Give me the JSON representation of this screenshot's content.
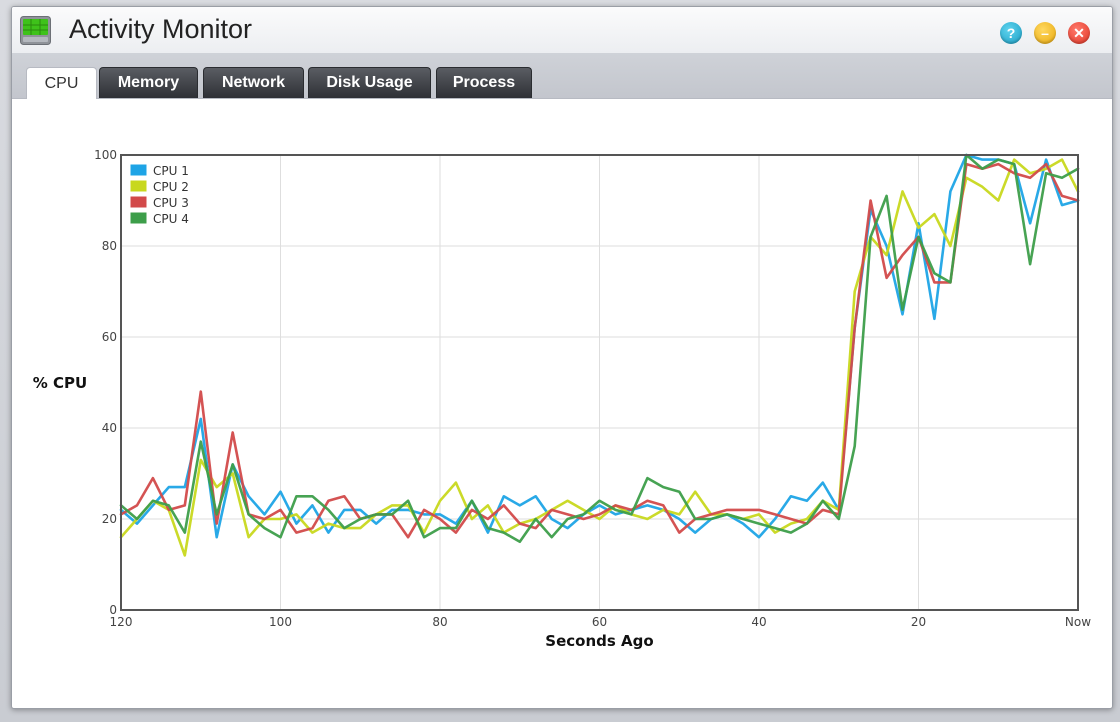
{
  "window": {
    "title": "Activity Monitor",
    "help_symbol": "?",
    "min_symbol": "–",
    "close_symbol": "✕"
  },
  "tabs": [
    {
      "label": "CPU",
      "active": true
    },
    {
      "label": "Memory",
      "active": false
    },
    {
      "label": "Network",
      "active": false
    },
    {
      "label": "Disk Usage",
      "active": false
    },
    {
      "label": "Process",
      "active": false
    }
  ],
  "chart_data": {
    "type": "line",
    "ylabel": "% CPU",
    "xlabel": "Seconds Ago",
    "xlim": [
      120,
      0
    ],
    "ylim": [
      0,
      100
    ],
    "x_ticks": [
      {
        "value": 120,
        "label": "120"
      },
      {
        "value": 100,
        "label": "100"
      },
      {
        "value": 80,
        "label": "80"
      },
      {
        "value": 60,
        "label": "60"
      },
      {
        "value": 40,
        "label": "40"
      },
      {
        "value": 20,
        "label": "20"
      },
      {
        "value": 0,
        "label": "Now"
      }
    ],
    "y_ticks": [
      0,
      20,
      40,
      60,
      80,
      100
    ],
    "grid": true,
    "legend_position": "top-left",
    "x": [
      120,
      118,
      116,
      114,
      112,
      110,
      108,
      106,
      104,
      102,
      100,
      98,
      96,
      94,
      92,
      90,
      88,
      86,
      84,
      82,
      80,
      78,
      76,
      74,
      72,
      70,
      68,
      66,
      64,
      62,
      60,
      58,
      56,
      54,
      52,
      50,
      48,
      46,
      44,
      42,
      40,
      38,
      36,
      34,
      32,
      30,
      28,
      26,
      24,
      22,
      20,
      18,
      16,
      14,
      12,
      10,
      8,
      6,
      4,
      2,
      0
    ],
    "series": [
      {
        "name": "CPU 1",
        "color": "#1ea4e6",
        "values": [
          22,
          19,
          23,
          27,
          27,
          42,
          16,
          32,
          25,
          21,
          26,
          19,
          23,
          17,
          22,
          22,
          19,
          22,
          22,
          21,
          21,
          19,
          24,
          17,
          25,
          23,
          25,
          20,
          18,
          21,
          23,
          21,
          22,
          23,
          22,
          20,
          17,
          20,
          21,
          19,
          16,
          20,
          25,
          24,
          28,
          22,
          62,
          88,
          80,
          65,
          85,
          64,
          92,
          100,
          99,
          99,
          98,
          85,
          99,
          89,
          90
        ]
      },
      {
        "name": "CPU 2",
        "color": "#c8d81e",
        "values": [
          16,
          20,
          24,
          22,
          12,
          33,
          27,
          30,
          16,
          20,
          20,
          21,
          17,
          19,
          18,
          18,
          21,
          23,
          23,
          17,
          24,
          28,
          20,
          23,
          17,
          19,
          20,
          22,
          24,
          22,
          20,
          23,
          21,
          20,
          22,
          21,
          26,
          21,
          21,
          20,
          21,
          17,
          19,
          20,
          24,
          22,
          70,
          82,
          78,
          92,
          84,
          87,
          80,
          95,
          93,
          90,
          99,
          96,
          97,
          99,
          92
        ]
      },
      {
        "name": "CPU 3",
        "color": "#d24a4a",
        "values": [
          21,
          23,
          29,
          22,
          23,
          48,
          19,
          39,
          21,
          20,
          22,
          17,
          18,
          24,
          25,
          20,
          21,
          21,
          16,
          22,
          20,
          17,
          22,
          20,
          23,
          19,
          18,
          22,
          21,
          20,
          21,
          23,
          22,
          24,
          23,
          17,
          20,
          21,
          22,
          22,
          22,
          21,
          20,
          19,
          22,
          21,
          62,
          90,
          73,
          78,
          82,
          72,
          72,
          98,
          97,
          98,
          96,
          95,
          98,
          91,
          90
        ]
      },
      {
        "name": "CPU 4",
        "color": "#3d9e4a",
        "values": [
          23,
          20,
          24,
          23,
          17,
          37,
          21,
          32,
          21,
          18,
          16,
          25,
          25,
          22,
          18,
          20,
          21,
          21,
          24,
          16,
          18,
          18,
          24,
          18,
          17,
          15,
          20,
          16,
          20,
          21,
          24,
          22,
          21,
          29,
          27,
          26,
          20,
          20,
          21,
          20,
          19,
          18,
          17,
          19,
          24,
          20,
          36,
          82,
          91,
          66,
          82,
          74,
          72,
          100,
          97,
          99,
          98,
          76,
          96,
          95,
          97
        ]
      }
    ]
  }
}
